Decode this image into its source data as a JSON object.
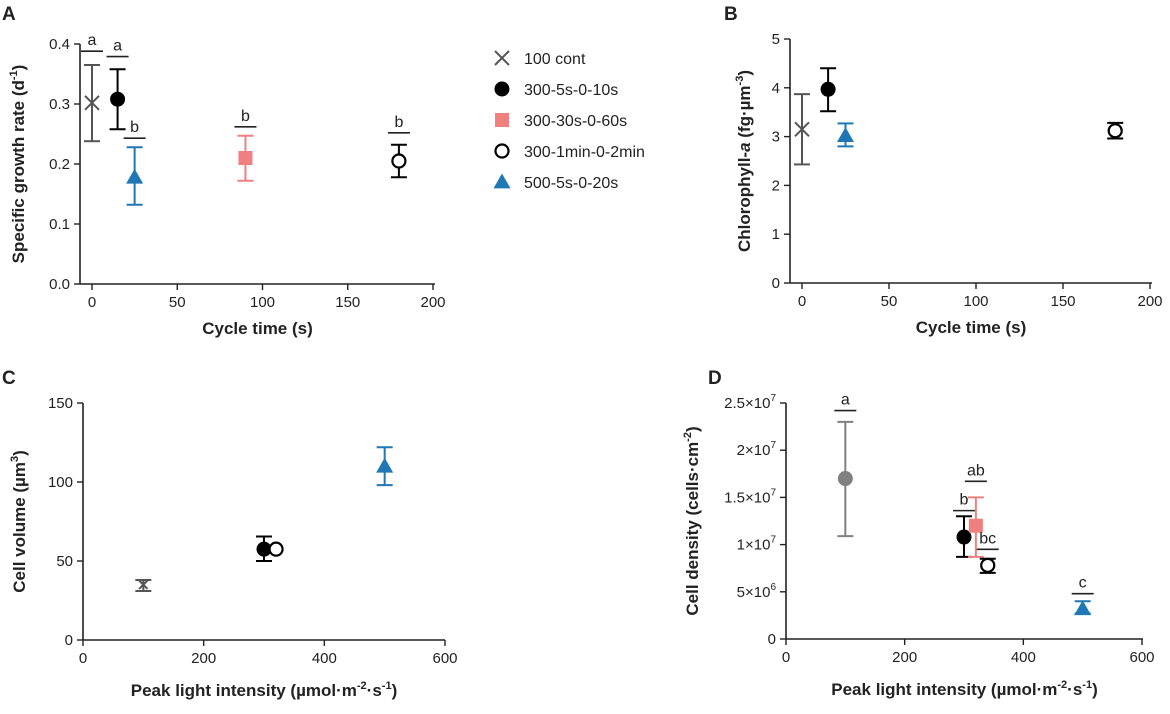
{
  "colors": {
    "cont": "#555555",
    "s300_5": "#000000",
    "s300_30": "#f08080",
    "s300_1min": "#000000",
    "s500": "#1f77b4",
    "panelD_cont": "#808080"
  },
  "legend": [
    {
      "label": "100 cont",
      "marker": "x",
      "color_key": "cont"
    },
    {
      "label": "300-5s-0-10s",
      "marker": "circle-filled",
      "color_key": "s300_5"
    },
    {
      "label": "300-30s-0-60s",
      "marker": "square",
      "color_key": "s300_30"
    },
    {
      "label": "300-1min-0-2min",
      "marker": "circle-open",
      "color_key": "s300_1min"
    },
    {
      "label": "500-5s-0-20s",
      "marker": "triangle",
      "color_key": "s500"
    }
  ],
  "chart_data": [
    {
      "panel": "A",
      "type": "scatter",
      "xlabel": "Cycle time (s)",
      "ylabel": "Specific growth rate (d",
      "ylabel_sup": "-1",
      "ylabel_end": ")",
      "xlim": [
        0,
        200
      ],
      "ylim": [
        0,
        0.4
      ],
      "xticks": [
        0,
        50,
        100,
        150,
        200
      ],
      "yticks": [
        0.0,
        0.1,
        0.2,
        0.3,
        0.4
      ],
      "ytick_labels": [
        "0.0",
        "0.1",
        "0.2",
        "0.3",
        "0.4"
      ],
      "points": [
        {
          "name": "100 cont",
          "x": 0,
          "y": 0.302,
          "lo": 0.238,
          "hi": 0.365,
          "marker": "x",
          "color_key": "cont",
          "letter": "a",
          "letter_y": 0.388
        },
        {
          "name": "300-5s-0-10s",
          "x": 15,
          "y": 0.308,
          "lo": 0.258,
          "hi": 0.358,
          "marker": "circle-filled",
          "color_key": "s300_5",
          "letter": "a",
          "letter_y": 0.379
        },
        {
          "name": "500-5s-0-20s",
          "x": 25,
          "y": 0.178,
          "lo": 0.132,
          "hi": 0.228,
          "marker": "triangle",
          "color_key": "s500",
          "letter": "b",
          "letter_y": 0.243
        },
        {
          "name": "300-30s-0-60s",
          "x": 90,
          "y": 0.21,
          "lo": 0.172,
          "hi": 0.247,
          "marker": "square",
          "color_key": "s300_30",
          "letter": "b",
          "letter_y": 0.262
        },
        {
          "name": "300-1min-0-2min",
          "x": 180,
          "y": 0.205,
          "lo": 0.178,
          "hi": 0.232,
          "marker": "circle-open",
          "color_key": "s300_1min",
          "letter": "b",
          "letter_y": 0.252
        }
      ]
    },
    {
      "panel": "B",
      "type": "scatter",
      "xlabel": "Cycle time (s)",
      "ylabel_parts": [
        "Chlorophyll-",
        "a",
        " (fg·µm",
        "-3",
        ")"
      ],
      "xlim": [
        0,
        200
      ],
      "ylim": [
        0,
        5
      ],
      "xticks": [
        0,
        50,
        100,
        150,
        200
      ],
      "yticks": [
        0,
        1,
        2,
        3,
        4,
        5
      ],
      "ytick_labels": [
        "0",
        "1",
        "2",
        "3",
        "4",
        "5"
      ],
      "points": [
        {
          "name": "100 cont",
          "x": 0,
          "y": 3.15,
          "lo": 2.43,
          "hi": 3.87,
          "marker": "x",
          "color_key": "cont"
        },
        {
          "name": "300-5s-0-10s",
          "x": 15,
          "y": 3.97,
          "lo": 3.52,
          "hi": 4.4,
          "marker": "circle-filled",
          "color_key": "s300_5"
        },
        {
          "name": "500-5s-0-20s",
          "x": 25,
          "y": 3.02,
          "lo": 2.8,
          "hi": 3.27,
          "marker": "triangle",
          "color_key": "s500"
        },
        {
          "name": "300-1min-0-2min",
          "x": 180,
          "y": 3.12,
          "lo": 2.96,
          "hi": 3.28,
          "marker": "circle-open",
          "color_key": "s300_1min"
        }
      ]
    },
    {
      "panel": "C",
      "type": "scatter",
      "xlabel_parts": [
        "Peak light intensity (µmol·m",
        "-2",
        "·s",
        "-1",
        ")"
      ],
      "ylabel_parts": [
        "Cell volume (µm",
        "3",
        ")"
      ],
      "xlim": [
        0,
        600
      ],
      "ylim": [
        0,
        150
      ],
      "xticks": [
        0,
        200,
        400,
        600
      ],
      "yticks": [
        0,
        50,
        100,
        150
      ],
      "ytick_labels": [
        "0",
        "50",
        "100",
        "150"
      ],
      "points": [
        {
          "name": "100 cont",
          "x": 100,
          "y": 35,
          "lo": 31,
          "hi": 38,
          "marker": "x",
          "color_key": "cont",
          "size": 0.6
        },
        {
          "name": "300-5s-0-10s",
          "x": 300,
          "y": 57.5,
          "lo": 50,
          "hi": 65.5,
          "marker": "circle-filled",
          "color_key": "s300_5"
        },
        {
          "name": "300-1min-0-2min",
          "x": 320,
          "y": 57.5,
          "lo": 57.5,
          "hi": 57.5,
          "marker": "circle-open",
          "color_key": "s300_1min"
        },
        {
          "name": "500-5s-0-20s",
          "x": 500,
          "y": 110,
          "lo": 98,
          "hi": 122,
          "marker": "triangle",
          "color_key": "s500"
        }
      ]
    },
    {
      "panel": "D",
      "type": "scatter",
      "xlabel_parts": [
        "Peak light intensity (µmol·m",
        "-2",
        "·s",
        "-1",
        ")"
      ],
      "ylabel_parts": [
        "Cell density (cells·cm",
        "-2",
        ")"
      ],
      "xlim": [
        0,
        600
      ],
      "ylim": [
        0,
        25000000
      ],
      "xticks": [
        0,
        200,
        400,
        600
      ],
      "yticks": [
        0,
        5000000,
        10000000,
        15000000,
        20000000,
        25000000
      ],
      "ytick_labels": [
        {
          "base": "0",
          "exp": ""
        },
        {
          "base": "5×10",
          "exp": "6"
        },
        {
          "base": "1×10",
          "exp": "7"
        },
        {
          "base": "1.5×10",
          "exp": "7"
        },
        {
          "base": "2×10",
          "exp": "7"
        },
        {
          "base": "2.5×10",
          "exp": "7"
        }
      ],
      "points": [
        {
          "name": "100 cont",
          "x": 100,
          "y": 17000000,
          "lo": 10900000,
          "hi": 23000000,
          "marker": "circle-filled",
          "color_key": "panelD_cont",
          "letter": "a",
          "letter_y": 24200000
        },
        {
          "name": "300-5s-0-10s",
          "x": 300,
          "y": 10800000,
          "lo": 8700000,
          "hi": 13000000,
          "marker": "circle-filled",
          "color_key": "s300_5",
          "letter": "b",
          "letter_y": 13600000
        },
        {
          "name": "300-30s-0-60s",
          "x": 320,
          "y": 12000000,
          "lo": 8700000,
          "hi": 15000000,
          "marker": "square",
          "color_key": "s300_30",
          "letter": "ab",
          "letter_y": 16700000
        },
        {
          "name": "300-1min-0-2min",
          "x": 340,
          "y": 7800000,
          "lo": 7000000,
          "hi": 8500000,
          "marker": "circle-open",
          "color_key": "s300_1min",
          "letter": "bc",
          "letter_y": 9500000
        },
        {
          "name": "500-5s-0-20s",
          "x": 500,
          "y": 3200000,
          "lo": 2700000,
          "hi": 4000000,
          "marker": "triangle",
          "color_key": "s500",
          "letter": "c",
          "letter_y": 4800000
        }
      ]
    }
  ]
}
